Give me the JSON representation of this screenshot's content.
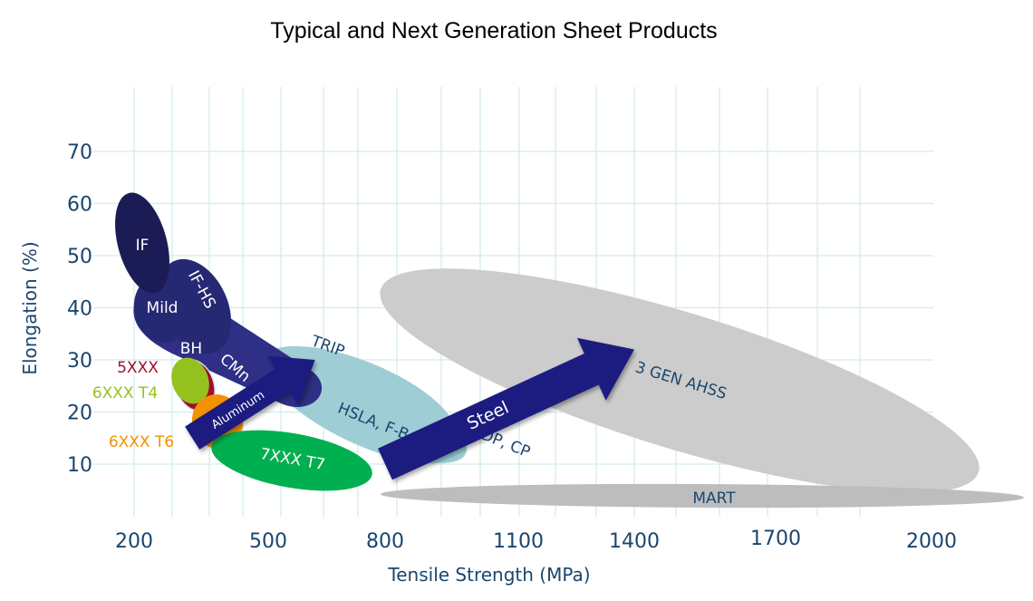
{
  "chart_data": {
    "type": "scatter",
    "subtype": "property-region-bubble-chart",
    "title": "Typical and Next Generation Sheet Products",
    "xlabel": "Tensile Strength (MPa)",
    "ylabel": "Elongation (%)",
    "x_ticks": [
      200,
      500,
      800,
      1100,
      1400,
      1700,
      2000
    ],
    "y_ticks": [
      10,
      20,
      30,
      40,
      50,
      60,
      70
    ],
    "xlim": [
      200,
      2000
    ],
    "ylim": [
      5,
      75
    ],
    "grid": true,
    "x_scale_note": "tick labels are not evenly spaced (schematic axis)",
    "regions": [
      {
        "name": "IF",
        "group": "steel-conventional",
        "color": "#1b1c55",
        "label_color": "#ffffff",
        "ts_range": [
          200,
          290
        ],
        "el_range": [
          44,
          60
        ]
      },
      {
        "name": "Mild",
        "group": "steel-conventional",
        "color": "#252872",
        "label_color": "#ffffff",
        "ts_range": [
          200,
          330
        ],
        "el_range": [
          33,
          45
        ]
      },
      {
        "name": "IF-HS",
        "group": "steel-conventional",
        "color": "#252872",
        "label_color": "#ffffff",
        "ts_range": [
          270,
          400
        ],
        "el_range": [
          30,
          44
        ]
      },
      {
        "name": "BH",
        "group": "steel-conventional",
        "color": "#2e2f85",
        "label_color": "#ffffff",
        "ts_range": [
          250,
          400
        ],
        "el_range": [
          28,
          38
        ]
      },
      {
        "name": "CMn",
        "group": "steel-conventional",
        "color": "#2e2f85",
        "label_color": "#ffffff",
        "ts_range": [
          280,
          600
        ],
        "el_range": [
          18,
          37
        ]
      },
      {
        "name": "TRIP",
        "group": "steel-ahss",
        "color": "#9ecdd6",
        "label_color": "#1b466e",
        "ts_range": [
          550,
          900
        ],
        "el_range": [
          20,
          32
        ]
      },
      {
        "name": "HSLA, F-B",
        "group": "steel-hsla",
        "color": "#9ecdd6",
        "label_color": "#1b466e",
        "ts_range": [
          450,
          900
        ],
        "el_range": [
          10,
          27
        ]
      },
      {
        "name": "DP, CP",
        "group": "steel-ahss",
        "color": "#9ecdd6",
        "label_color": "#1b466e",
        "ts_range": [
          500,
          1100
        ],
        "el_range": [
          8,
          25
        ]
      },
      {
        "name": "3 GEN AHSS",
        "group": "steel-3rd-gen",
        "color": "#cccccc",
        "label_color": "#1b466e",
        "ts_range": [
          800,
          2000
        ],
        "el_range": [
          8,
          40
        ]
      },
      {
        "name": "MART",
        "group": "steel-martensitic",
        "color": "#bdbdbd",
        "label_color": "#1b466e",
        "ts_range": [
          800,
          2000
        ],
        "el_range": [
          3,
          6
        ]
      },
      {
        "name": "5XXX",
        "group": "aluminum",
        "color": "#a30d2a",
        "label_color": "#a30d2a",
        "ts_range": [
          250,
          330
        ],
        "el_range": [
          20,
          30
        ]
      },
      {
        "name": "6XXX T4",
        "group": "aluminum",
        "color": "#95c11f",
        "label_color": "#95c11f",
        "ts_range": [
          240,
          320
        ],
        "el_range": [
          22,
          30
        ]
      },
      {
        "name": "6XXX T6",
        "group": "aluminum",
        "color": "#f39200",
        "label_color": "#f39200",
        "ts_range": [
          280,
          360
        ],
        "el_range": [
          12,
          24
        ]
      },
      {
        "name": "7XXX T7",
        "group": "aluminum",
        "color": "#00b050",
        "label_color": "#ffffff",
        "ts_range": [
          370,
          700
        ],
        "el_range": [
          6,
          18
        ]
      }
    ],
    "arrows": [
      {
        "label": "Aluminum",
        "color": "#1f1c80",
        "from": {
          "ts": 330,
          "el": 15
        },
        "to": {
          "ts": 620,
          "el": 30
        }
      },
      {
        "label": "Steel",
        "color": "#1f1c80",
        "from": {
          "ts": 800,
          "el": 10
        },
        "to": {
          "ts": 1400,
          "el": 32
        }
      }
    ]
  },
  "colors": {
    "grid": "#d4eaee",
    "axis_text": "#1b466e",
    "title_text": "#000000"
  }
}
